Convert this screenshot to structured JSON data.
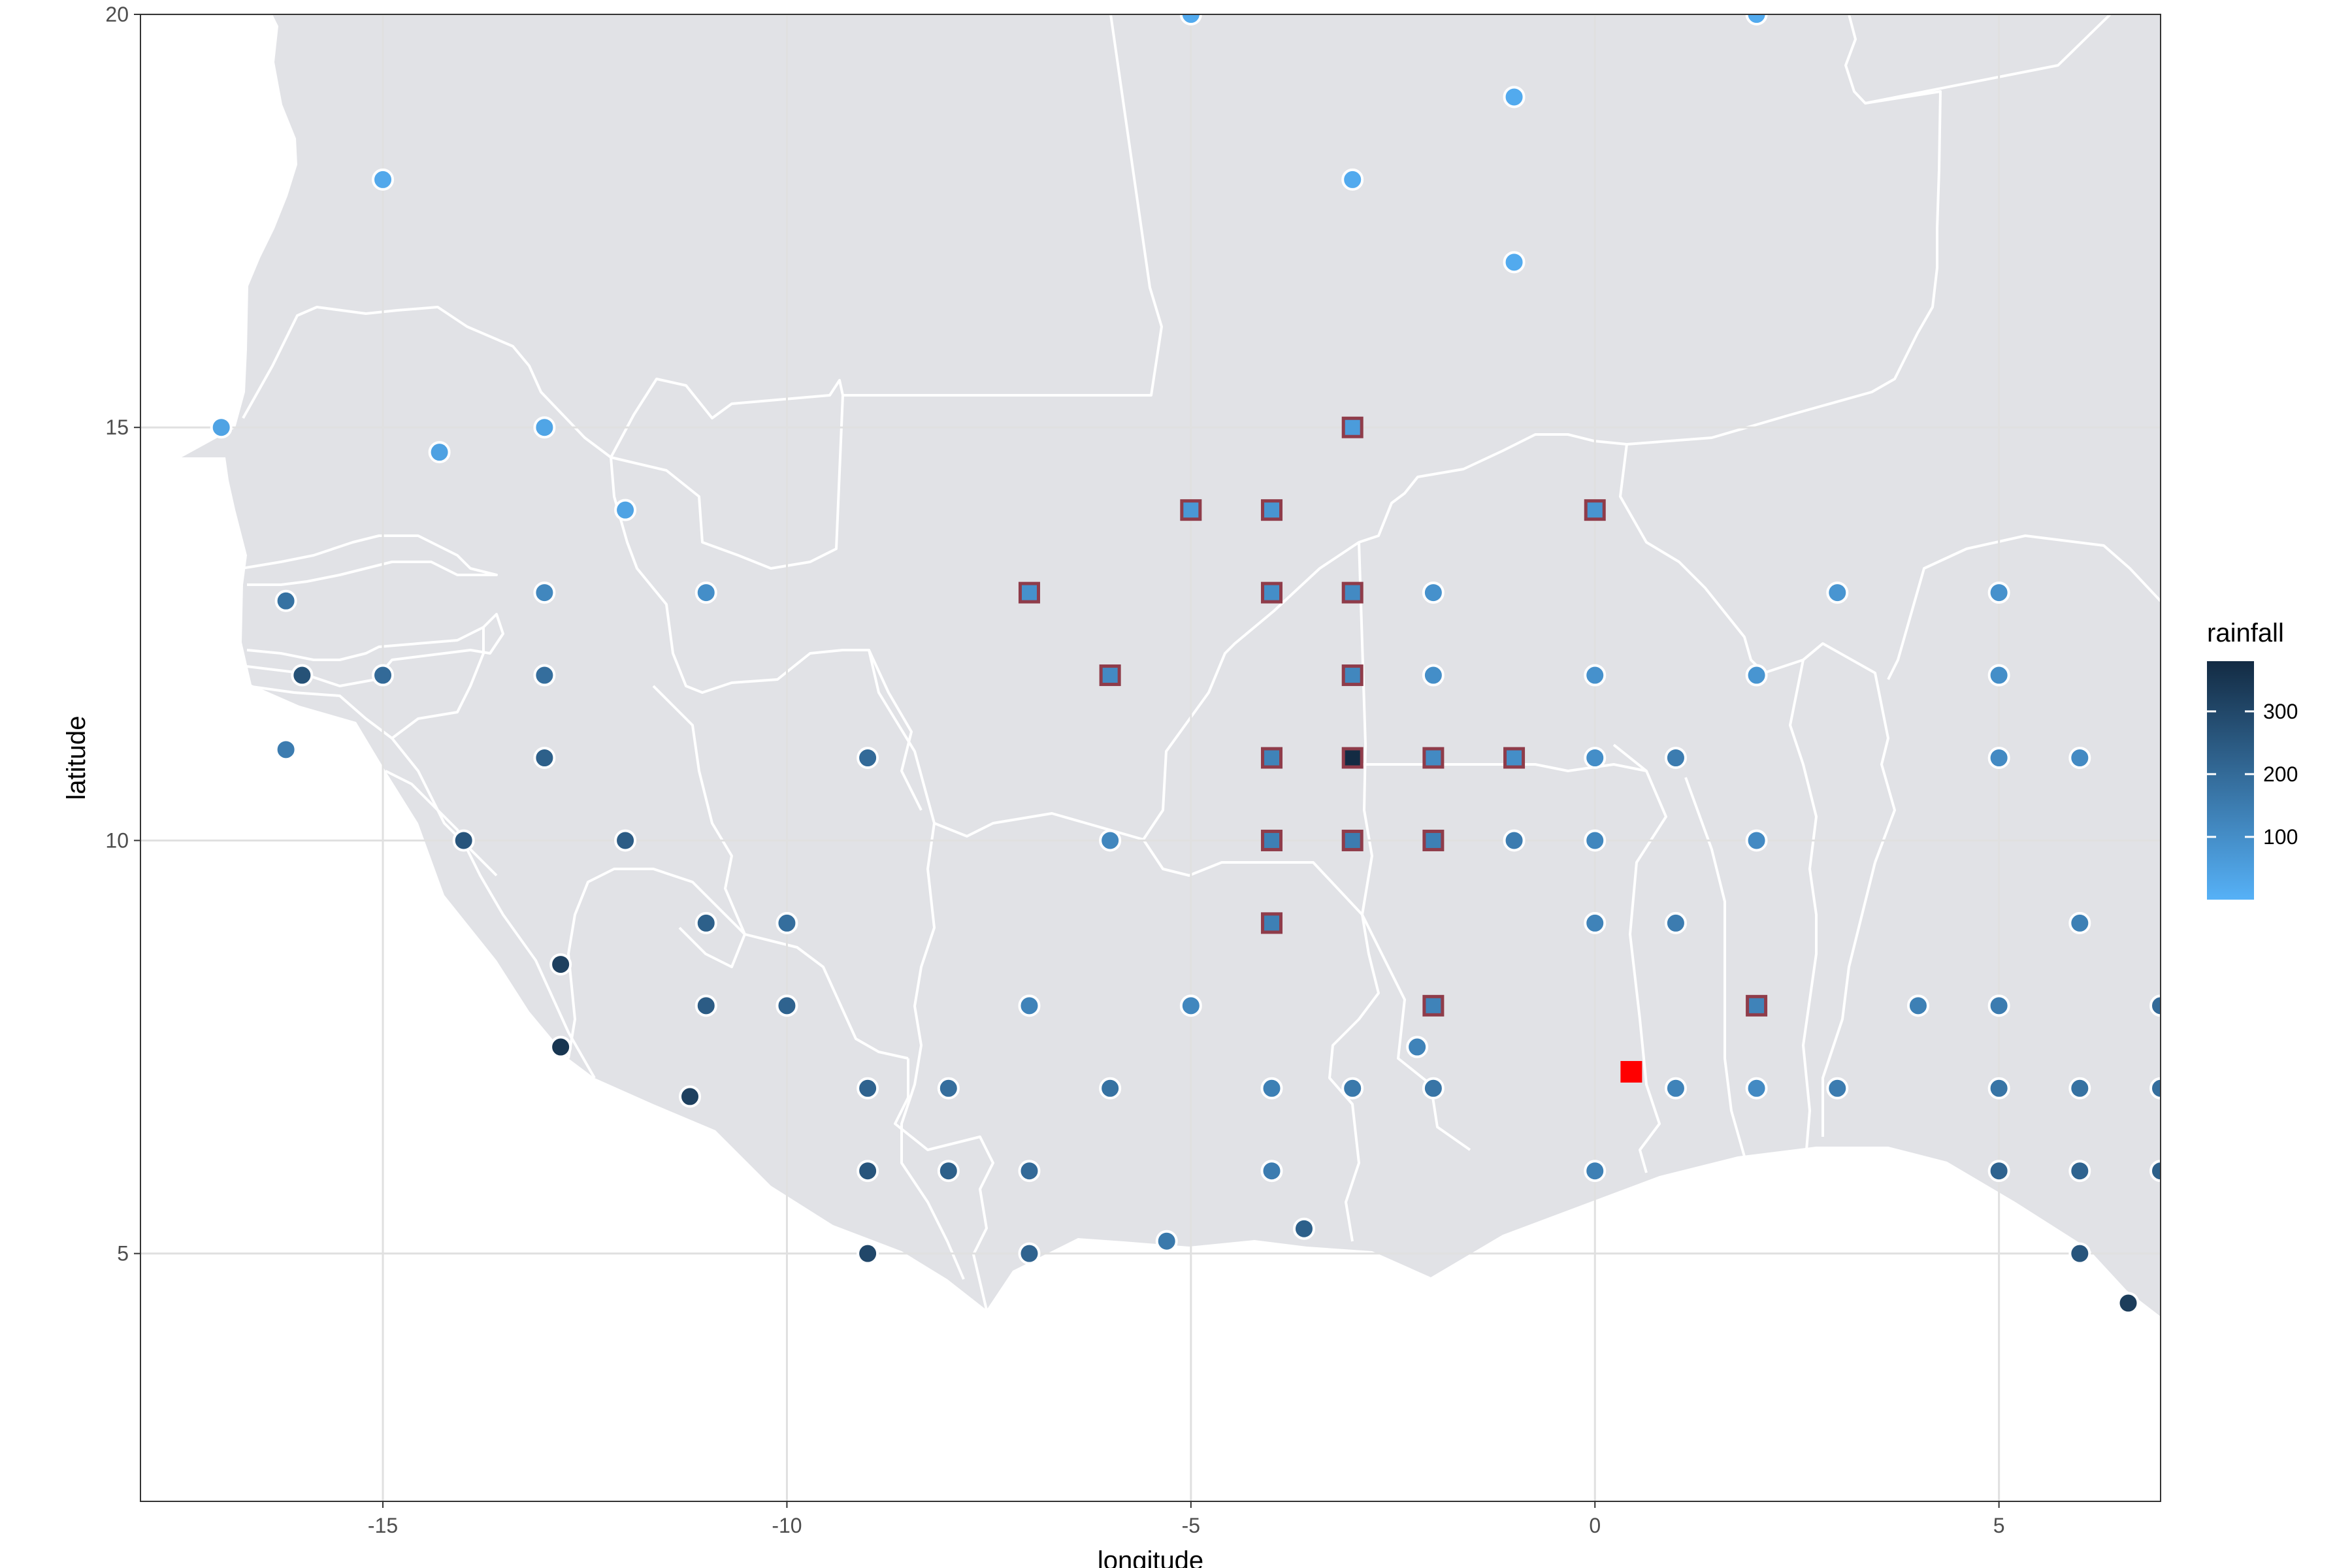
{
  "chart_data": {
    "type": "scatter",
    "title": "",
    "xlabel": "longitude",
    "ylabel": "latitude",
    "xlim": [
      -18,
      7
    ],
    "ylim": [
      2,
      20
    ],
    "x_ticks": [
      {
        "value": -15,
        "label": "-15"
      },
      {
        "value": -10,
        "label": "-10"
      },
      {
        "value": -5,
        "label": "-5"
      },
      {
        "value": 0,
        "label": "0"
      },
      {
        "value": 5,
        "label": "5"
      }
    ],
    "y_ticks": [
      {
        "value": 5,
        "label": "5"
      },
      {
        "value": 10,
        "label": "10"
      },
      {
        "value": 15,
        "label": "15"
      },
      {
        "value": 20,
        "label": "20"
      }
    ],
    "grid": true,
    "background": "map of West Africa with country borders",
    "colors": {
      "land": "#e1e2e6",
      "ocean": "#ffffff",
      "border": "#ffffff",
      "grid": "#e0e0e0",
      "panel_border": "#333333",
      "square_outline": "#8f3c4a",
      "highlight": "#ff0000",
      "point_outline": "#ffffff"
    },
    "legend": {
      "title": "rainfall",
      "position": "right",
      "type": "colorbar",
      "range": [
        0,
        380
      ],
      "ticks": [
        {
          "value": 100,
          "label": "100"
        },
        {
          "value": 200,
          "label": "200"
        },
        {
          "value": 300,
          "label": "300"
        }
      ],
      "color_low": "#56b1f7",
      "color_high": "#132b43"
    },
    "series": [
      {
        "marker": "circle",
        "points": [
          {
            "lon": -5,
            "lat": 20,
            "rainfall": 20
          },
          {
            "lon": 2,
            "lat": 20,
            "rainfall": 20
          },
          {
            "lon": -1,
            "lat": 19,
            "rainfall": 20
          },
          {
            "lon": -15,
            "lat": 18,
            "rainfall": 25
          },
          {
            "lon": -3,
            "lat": 18,
            "rainfall": 20
          },
          {
            "lon": -1,
            "lat": 17,
            "rainfall": 20
          },
          {
            "lon": -17,
            "lat": 15,
            "rainfall": 40
          },
          {
            "lon": -14.3,
            "lat": 14.7,
            "rainfall": 45
          },
          {
            "lon": -13,
            "lat": 15,
            "rainfall": 35
          },
          {
            "lon": -12,
            "lat": 14,
            "rainfall": 40
          },
          {
            "lon": -16.2,
            "lat": 12.9,
            "rainfall": 180
          },
          {
            "lon": -13,
            "lat": 13,
            "rainfall": 120
          },
          {
            "lon": -11,
            "lat": 13,
            "rainfall": 100
          },
          {
            "lon": -16,
            "lat": 12,
            "rainfall": 270
          },
          {
            "lon": -15,
            "lat": 12,
            "rainfall": 200
          },
          {
            "lon": -13,
            "lat": 12,
            "rainfall": 190
          },
          {
            "lon": -16.2,
            "lat": 11.1,
            "rainfall": 150
          },
          {
            "lon": -13,
            "lat": 11,
            "rainfall": 230
          },
          {
            "lon": -9,
            "lat": 11,
            "rainfall": 200
          },
          {
            "lon": -14,
            "lat": 10,
            "rainfall": 260
          },
          {
            "lon": -12,
            "lat": 10,
            "rainfall": 240
          },
          {
            "lon": -6,
            "lat": 10,
            "rainfall": 120
          },
          {
            "lon": -1,
            "lat": 10,
            "rainfall": 150
          },
          {
            "lon": 0,
            "lat": 10,
            "rainfall": 120
          },
          {
            "lon": 2,
            "lat": 10,
            "rainfall": 110
          },
          {
            "lon": -2,
            "lat": 13,
            "rainfall": 90
          },
          {
            "lon": 3,
            "lat": 13,
            "rainfall": 80
          },
          {
            "lon": 5,
            "lat": 13,
            "rainfall": 90
          },
          {
            "lon": -2,
            "lat": 12,
            "rainfall": 100
          },
          {
            "lon": 0,
            "lat": 12,
            "rainfall": 90
          },
          {
            "lon": 2,
            "lat": 12,
            "rainfall": 80
          },
          {
            "lon": 5,
            "lat": 12,
            "rainfall": 100
          },
          {
            "lon": 0,
            "lat": 11,
            "rainfall": 100
          },
          {
            "lon": 1,
            "lat": 11,
            "rainfall": 150
          },
          {
            "lon": 5,
            "lat": 11,
            "rainfall": 110
          },
          {
            "lon": 6,
            "lat": 11,
            "rainfall": 110
          },
          {
            "lon": -11,
            "lat": 9,
            "rainfall": 230
          },
          {
            "lon": -10,
            "lat": 9,
            "rainfall": 190
          },
          {
            "lon": 0,
            "lat": 9,
            "rainfall": 130
          },
          {
            "lon": 1,
            "lat": 9,
            "rainfall": 150
          },
          {
            "lon": 6,
            "lat": 9,
            "rainfall": 140
          },
          {
            "lon": -12.8,
            "lat": 8.5,
            "rainfall": 320
          },
          {
            "lon": -11,
            "lat": 8,
            "rainfall": 240
          },
          {
            "lon": -10,
            "lat": 8,
            "rainfall": 220
          },
          {
            "lon": -7,
            "lat": 8,
            "rainfall": 130
          },
          {
            "lon": -5,
            "lat": 8,
            "rainfall": 120
          },
          {
            "lon": 4,
            "lat": 8,
            "rainfall": 140
          },
          {
            "lon": 5,
            "lat": 8,
            "rainfall": 150
          },
          {
            "lon": 7,
            "lat": 8,
            "rainfall": 200
          },
          {
            "lon": -12.8,
            "lat": 7.5,
            "rainfall": 350
          },
          {
            "lon": -2.2,
            "lat": 7.5,
            "rainfall": 130
          },
          {
            "lon": -11.2,
            "lat": 6.9,
            "rainfall": 320
          },
          {
            "lon": -9,
            "lat": 7,
            "rainfall": 220
          },
          {
            "lon": -8,
            "lat": 7,
            "rainfall": 190
          },
          {
            "lon": -6,
            "lat": 7,
            "rainfall": 180
          },
          {
            "lon": -4,
            "lat": 7,
            "rainfall": 140
          },
          {
            "lon": -3,
            "lat": 7,
            "rainfall": 160
          },
          {
            "lon": -2,
            "lat": 7,
            "rainfall": 170
          },
          {
            "lon": 1,
            "lat": 7,
            "rainfall": 130
          },
          {
            "lon": 2,
            "lat": 7,
            "rainfall": 110
          },
          {
            "lon": 3,
            "lat": 7,
            "rainfall": 150
          },
          {
            "lon": 5,
            "lat": 7,
            "rainfall": 170
          },
          {
            "lon": 6,
            "lat": 7,
            "rainfall": 180
          },
          {
            "lon": 7,
            "lat": 7,
            "rainfall": 190
          },
          {
            "lon": -9,
            "lat": 6,
            "rainfall": 260
          },
          {
            "lon": -8,
            "lat": 6,
            "rainfall": 230
          },
          {
            "lon": -7,
            "lat": 6,
            "rainfall": 200
          },
          {
            "lon": -4,
            "lat": 6,
            "rainfall": 150
          },
          {
            "lon": 0,
            "lat": 6,
            "rainfall": 140
          },
          {
            "lon": 5,
            "lat": 6,
            "rainfall": 220
          },
          {
            "lon": 6,
            "lat": 6,
            "rainfall": 220
          },
          {
            "lon": 7,
            "lat": 6,
            "rainfall": 230
          },
          {
            "lon": -9,
            "lat": 5,
            "rainfall": 300
          },
          {
            "lon": -7,
            "lat": 5,
            "rainfall": 220
          },
          {
            "lon": -5.3,
            "lat": 5.15,
            "rainfall": 160
          },
          {
            "lon": -3.6,
            "lat": 5.3,
            "rainfall": 230
          },
          {
            "lon": 6,
            "lat": 5,
            "rainfall": 260
          },
          {
            "lon": 6.6,
            "lat": 4.4,
            "rainfall": 330
          }
        ]
      },
      {
        "marker": "square",
        "points": [
          {
            "lon": -3,
            "lat": 15,
            "rainfall": 60
          },
          {
            "lon": -5,
            "lat": 14,
            "rainfall": 70
          },
          {
            "lon": -4,
            "lat": 14,
            "rainfall": 80
          },
          {
            "lon": 0,
            "lat": 14,
            "rainfall": 80
          },
          {
            "lon": -7,
            "lat": 13,
            "rainfall": 90
          },
          {
            "lon": -4,
            "lat": 13,
            "rainfall": 100
          },
          {
            "lon": -3,
            "lat": 13,
            "rainfall": 110
          },
          {
            "lon": -6,
            "lat": 12,
            "rainfall": 110
          },
          {
            "lon": -3,
            "lat": 12,
            "rainfall": 120
          },
          {
            "lon": -4,
            "lat": 11,
            "rainfall": 130
          },
          {
            "lon": -3,
            "lat": 11,
            "rainfall": 380
          },
          {
            "lon": -2,
            "lat": 11,
            "rainfall": 110
          },
          {
            "lon": -1,
            "lat": 11,
            "rainfall": 100
          },
          {
            "lon": -4,
            "lat": 10,
            "rainfall": 140
          },
          {
            "lon": -3,
            "lat": 10,
            "rainfall": 150
          },
          {
            "lon": -2,
            "lat": 10,
            "rainfall": 140
          },
          {
            "lon": -4,
            "lat": 9,
            "rainfall": 140
          },
          {
            "lon": -2,
            "lat": 8,
            "rainfall": 130
          },
          {
            "lon": 2,
            "lat": 8,
            "rainfall": 130
          }
        ]
      },
      {
        "marker": "highlight",
        "points": [
          {
            "lon": 0.45,
            "lat": 7.2
          }
        ]
      }
    ]
  }
}
